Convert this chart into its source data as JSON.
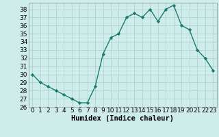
{
  "x": [
    0,
    1,
    2,
    3,
    4,
    5,
    6,
    7,
    8,
    9,
    10,
    11,
    12,
    13,
    14,
    15,
    16,
    17,
    18,
    19,
    20,
    21,
    22,
    23
  ],
  "y": [
    30,
    29,
    28.5,
    28,
    27.5,
    27,
    26.5,
    26.5,
    28.5,
    32.5,
    34.5,
    35,
    37,
    37.5,
    37,
    38,
    36.5,
    38,
    38.5,
    36,
    35.5,
    33,
    32,
    30.5
  ],
  "line_color": "#1a7a6e",
  "marker": "D",
  "marker_size": 2.2,
  "bg_color": "#ceecea",
  "grid_color": "#b0d4d2",
  "xlabel": "Humidex (Indice chaleur)",
  "xlim": [
    -0.5,
    23.5
  ],
  "ylim": [
    26,
    38.8
  ],
  "yticks": [
    26,
    27,
    28,
    29,
    30,
    31,
    32,
    33,
    34,
    35,
    36,
    37,
    38
  ],
  "xticks": [
    0,
    1,
    2,
    3,
    4,
    5,
    6,
    7,
    8,
    9,
    10,
    11,
    12,
    13,
    14,
    15,
    16,
    17,
    18,
    19,
    20,
    21,
    22,
    23
  ],
  "xlabel_fontsize": 7.5,
  "tick_fontsize": 6.5,
  "line_width": 1.0
}
